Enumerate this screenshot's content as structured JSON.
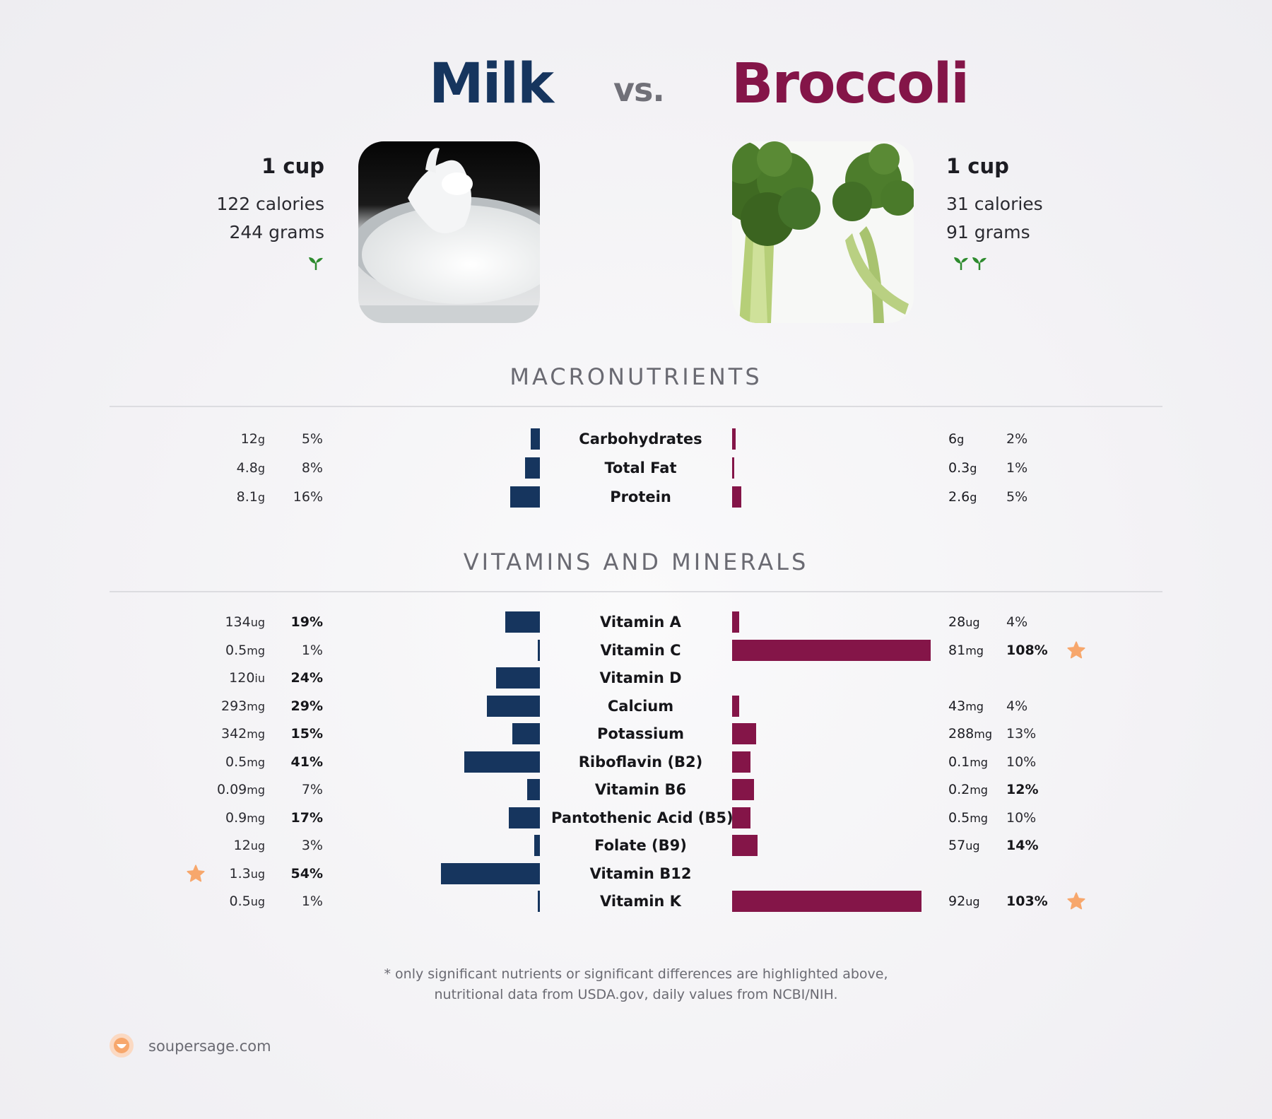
{
  "header": {
    "left_title": "Milk",
    "vs": "vs.",
    "right_title": "Broccoli"
  },
  "left_food": {
    "serving": "1 cup",
    "calories": "122 calories",
    "grams": "244 grams",
    "sprouts": 1,
    "image_icon": "milk-splash-photo"
  },
  "right_food": {
    "serving": "1 cup",
    "calories": "31 calories",
    "grams": "91 grams",
    "sprouts": 2,
    "image_icon": "broccoli-photo"
  },
  "sections": {
    "macro_title": "MACRONUTRIENTS",
    "vitamins_title": "VITAMINS AND MINERALS"
  },
  "colors": {
    "left": "#16355e",
    "right": "#841548",
    "star": "#f7a76c",
    "sprout": "#2e8b2e"
  },
  "chart_data": [
    {
      "type": "bar",
      "title": "MACRONUTRIENTS",
      "series": [
        {
          "name": "Milk",
          "side": "left"
        },
        {
          "name": "Broccoli",
          "side": "right"
        }
      ],
      "rows": [
        {
          "label": "Carbohydrates",
          "left": {
            "value": "12",
            "unit": "g",
            "pct": 5,
            "pct_text": "5%",
            "bold": false
          },
          "right": {
            "value": "6",
            "unit": "g",
            "pct": 2,
            "pct_text": "2%",
            "bold": false
          }
        },
        {
          "label": "Total Fat",
          "left": {
            "value": "4.8",
            "unit": "g",
            "pct": 8,
            "pct_text": "8%",
            "bold": false
          },
          "right": {
            "value": "0.3",
            "unit": "g",
            "pct": 1,
            "pct_text": "1%",
            "bold": false
          }
        },
        {
          "label": "Protein",
          "left": {
            "value": "8.1",
            "unit": "g",
            "pct": 16,
            "pct_text": "16%",
            "bold": false
          },
          "right": {
            "value": "2.6",
            "unit": "g",
            "pct": 5,
            "pct_text": "5%",
            "bold": false
          }
        }
      ]
    },
    {
      "type": "bar",
      "title": "VITAMINS AND MINERALS",
      "series": [
        {
          "name": "Milk",
          "side": "left"
        },
        {
          "name": "Broccoli",
          "side": "right"
        }
      ],
      "rows": [
        {
          "label": "Vitamin A",
          "left": {
            "value": "134",
            "unit": "ug",
            "pct": 19,
            "pct_text": "19%",
            "bold": true
          },
          "right": {
            "value": "28",
            "unit": "ug",
            "pct": 4,
            "pct_text": "4%",
            "bold": false
          }
        },
        {
          "label": "Vitamin C",
          "left": {
            "value": "0.5",
            "unit": "mg",
            "pct": 1,
            "pct_text": "1%",
            "bold": false
          },
          "right": {
            "value": "81",
            "unit": "mg",
            "pct": 108,
            "pct_text": "108%",
            "bold": true,
            "star": true
          }
        },
        {
          "label": "Vitamin D",
          "left": {
            "value": "120",
            "unit": "iu",
            "pct": 24,
            "pct_text": "24%",
            "bold": true
          },
          "right": null
        },
        {
          "label": "Calcium",
          "left": {
            "value": "293",
            "unit": "mg",
            "pct": 29,
            "pct_text": "29%",
            "bold": true
          },
          "right": {
            "value": "43",
            "unit": "mg",
            "pct": 4,
            "pct_text": "4%",
            "bold": false
          }
        },
        {
          "label": "Potassium",
          "left": {
            "value": "342",
            "unit": "mg",
            "pct": 15,
            "pct_text": "15%",
            "bold": true
          },
          "right": {
            "value": "288",
            "unit": "mg",
            "pct": 13,
            "pct_text": "13%",
            "bold": false
          }
        },
        {
          "label": "Riboflavin (B2)",
          "left": {
            "value": "0.5",
            "unit": "mg",
            "pct": 41,
            "pct_text": "41%",
            "bold": true
          },
          "right": {
            "value": "0.1",
            "unit": "mg",
            "pct": 10,
            "pct_text": "10%",
            "bold": false
          }
        },
        {
          "label": "Vitamin B6",
          "left": {
            "value": "0.09",
            "unit": "mg",
            "pct": 7,
            "pct_text": "7%",
            "bold": false
          },
          "right": {
            "value": "0.2",
            "unit": "mg",
            "pct": 12,
            "pct_text": "12%",
            "bold": true
          }
        },
        {
          "label": "Pantothenic Acid (B5)",
          "left": {
            "value": "0.9",
            "unit": "mg",
            "pct": 17,
            "pct_text": "17%",
            "bold": true
          },
          "right": {
            "value": "0.5",
            "unit": "mg",
            "pct": 10,
            "pct_text": "10%",
            "bold": false
          }
        },
        {
          "label": "Folate (B9)",
          "left": {
            "value": "12",
            "unit": "ug",
            "pct": 3,
            "pct_text": "3%",
            "bold": false
          },
          "right": {
            "value": "57",
            "unit": "ug",
            "pct": 14,
            "pct_text": "14%",
            "bold": true
          }
        },
        {
          "label": "Vitamin B12",
          "left": {
            "value": "1.3",
            "unit": "ug",
            "pct": 54,
            "pct_text": "54%",
            "bold": true,
            "star": true
          },
          "right": null
        },
        {
          "label": "Vitamin K",
          "left": {
            "value": "0.5",
            "unit": "ug",
            "pct": 1,
            "pct_text": "1%",
            "bold": false
          },
          "right": {
            "value": "92",
            "unit": "ug",
            "pct": 103,
            "pct_text": "103%",
            "bold": true,
            "star": true
          }
        }
      ]
    }
  ],
  "footer": {
    "note_line1": "* only significant nutrients or significant differences are highlighted above,",
    "note_line2": "nutritional data from USDA.gov, daily values from NCBI/NIH.",
    "brand": "soupersage.com",
    "brand_icon": "soupersage-logo-icon"
  }
}
